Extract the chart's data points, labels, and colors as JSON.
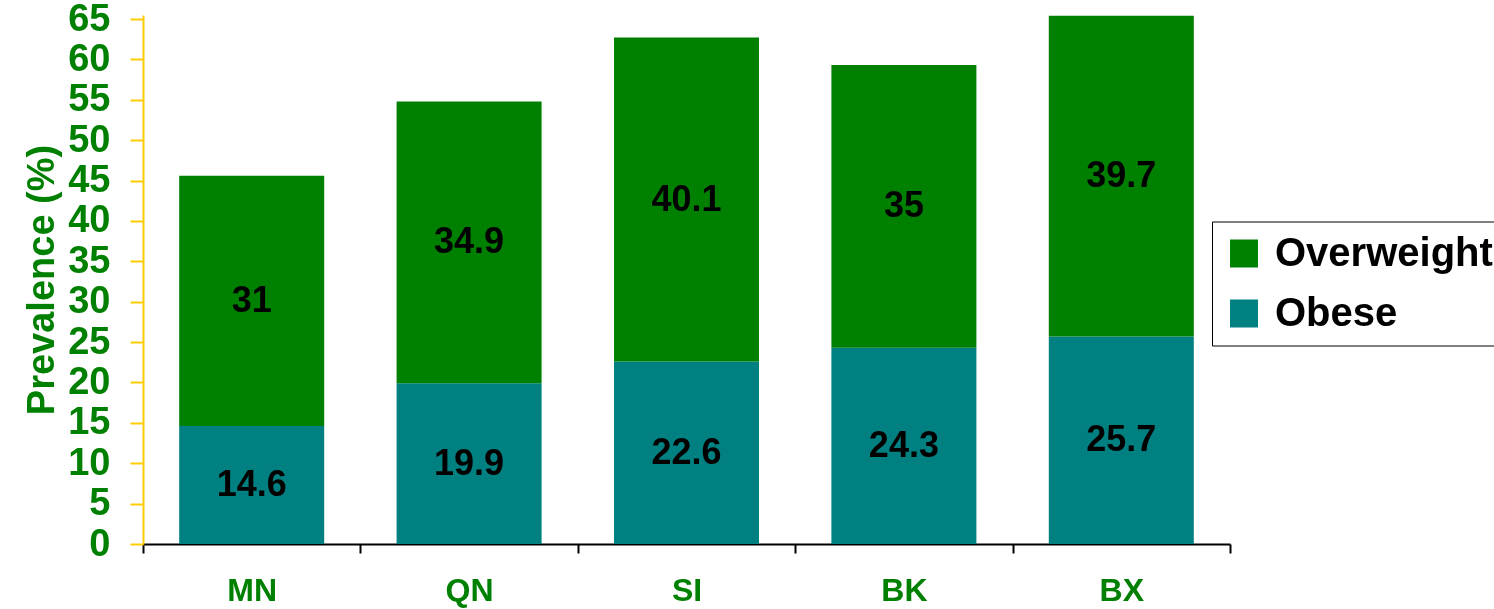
{
  "chart_data": {
    "type": "bar",
    "stacked": true,
    "categories": [
      "MN",
      "QN",
      "SI",
      "BK",
      "BX"
    ],
    "ylabel": "Prevalence (%)",
    "ylim": [
      0,
      65.5
    ],
    "yticks": [
      0,
      5,
      10,
      15,
      20,
      25,
      30,
      35,
      40,
      45,
      50,
      55,
      60,
      65
    ],
    "series": [
      {
        "name": "Obese",
        "color": "#008080",
        "values": [
          14.6,
          19.9,
          22.6,
          24.3,
          25.7
        ]
      },
      {
        "name": "Overweight",
        "color": "#008000",
        "values": [
          31,
          34.9,
          40.1,
          35,
          39.7
        ]
      }
    ],
    "data_labels": true,
    "legend": "right",
    "grid": false
  }
}
